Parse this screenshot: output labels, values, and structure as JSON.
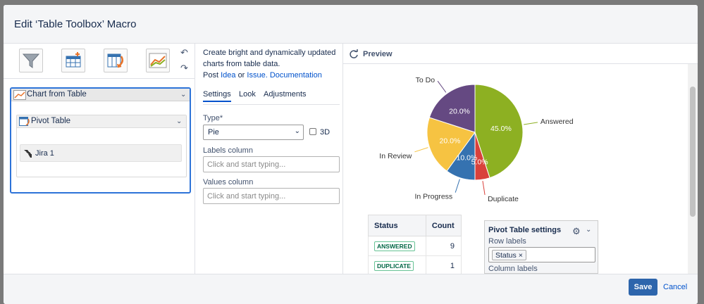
{
  "dialog": {
    "title": "Edit ‘Table Toolbox’ Macro",
    "save_label": "Save",
    "cancel_label": "Cancel"
  },
  "left": {
    "undo_glyph": "↶",
    "redo_glyph": "↷",
    "chart_macro_label": "Chart from Table",
    "pivot_macro_label": "Pivot Table",
    "jira_macro_label": "Jira 1"
  },
  "middle": {
    "desc_line1": "Create bright and dynamically updated",
    "desc_line2": "charts from table data.",
    "post": "Post",
    "idea_link": "Idea",
    "or": "or",
    "issue_link": "Issue.",
    "docs_link": "Documentation",
    "tabs": [
      "Settings",
      "Look",
      "Adjustments"
    ],
    "type_label": "Type*",
    "type_value": "Pie",
    "checkbox_3d_label": "3D",
    "labels_column_label": "Labels column",
    "labels_column_placeholder": "Click and start typing...",
    "values_column_label": "Values column",
    "values_column_placeholder": "Click and start typing..."
  },
  "preview": {
    "title": "Preview",
    "table_headers": [
      "Status",
      "Count"
    ],
    "table_rows": [
      {
        "status": "ANSWERED",
        "count": "9"
      },
      {
        "status": "DUPLICATE",
        "count": "1"
      }
    ],
    "pivot_settings_title": "Pivot Table settings",
    "row_labels_label": "Row labels",
    "row_label_chip": "Status",
    "chip_remove": "×",
    "column_labels_label": "Column labels"
  },
  "chart_data": {
    "type": "pie",
    "slices": [
      {
        "label": "Answered",
        "value": 45.0,
        "pct_label": "45.0%",
        "color": "#8db022"
      },
      {
        "label": "Duplicate",
        "value": 5.0,
        "pct_label": "5.0%",
        "color": "#d9413b"
      },
      {
        "label": "In Progress",
        "value": 10.0,
        "pct_label": "10.0%",
        "color": "#3572b0"
      },
      {
        "label": "In Review",
        "value": 20.0,
        "pct_label": "20.0%",
        "color": "#f6c342"
      },
      {
        "label": "To Do",
        "value": 20.0,
        "pct_label": "20.0%",
        "color": "#654982"
      }
    ]
  }
}
